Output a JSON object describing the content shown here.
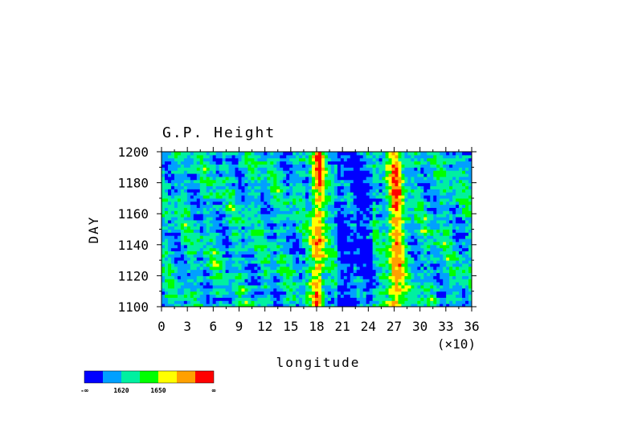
{
  "chart_data": {
    "type": "heatmap",
    "title": "G.P. Height",
    "xlabel": "longitude",
    "ylabel": "DAY",
    "x_multiplier_label": "(×10)",
    "xlim": [
      0,
      36
    ],
    "ylim": [
      1100,
      1200
    ],
    "x_ticks": [
      "0",
      "3",
      "6",
      "9",
      "12",
      "15",
      "18",
      "21",
      "24",
      "27",
      "30",
      "33",
      "36"
    ],
    "y_ticks": [
      "1100",
      "1120",
      "1140",
      "1160",
      "1180",
      "1200"
    ],
    "y_tick_values": [
      1100,
      1120,
      1140,
      1160,
      1180,
      1200
    ],
    "colorbar": {
      "colors": [
        "#0000ff",
        "#00a0ff",
        "#00f0a0",
        "#00ff00",
        "#ffff00",
        "#ffa000",
        "#ff0000"
      ],
      "labels": [
        "-∞",
        "1620",
        "1650",
        "∞"
      ]
    },
    "high_value_bands_longitude_x10": [
      [
        17.3,
        19.0
      ],
      [
        26.2,
        28.2
      ]
    ]
  }
}
